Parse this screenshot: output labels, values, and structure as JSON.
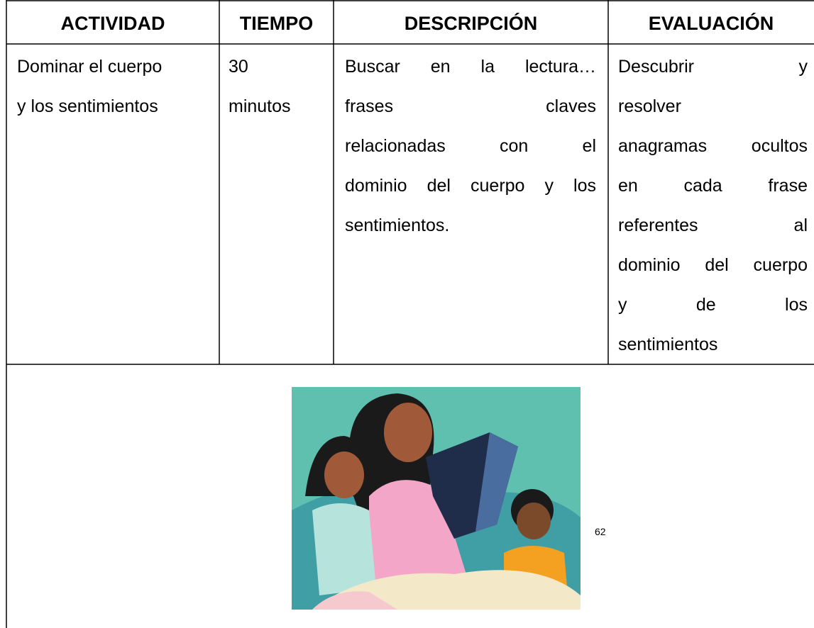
{
  "table": {
    "header": [
      "ACTIVIDAD",
      "TIEMPO",
      "DESCRIPCIÓN",
      "EVALUACIÓN"
    ],
    "row": [
      [
        "Dominar el cuerpo",
        "y los sentimientos"
      ],
      [
        "30",
        "minutos"
      ],
      [
        "Buscar en la lectura…",
        "frases claves",
        "relacionadas con el",
        "dominio del cuerpo y los",
        "sentimientos."
      ],
      [
        "Descubrir y",
        "resolver",
        "anagramas ocultos",
        "en cada frase",
        "referentes al",
        "dominio del cuerpo",
        "y de los",
        "sentimientos"
      ]
    ]
  },
  "page_number": "62"
}
